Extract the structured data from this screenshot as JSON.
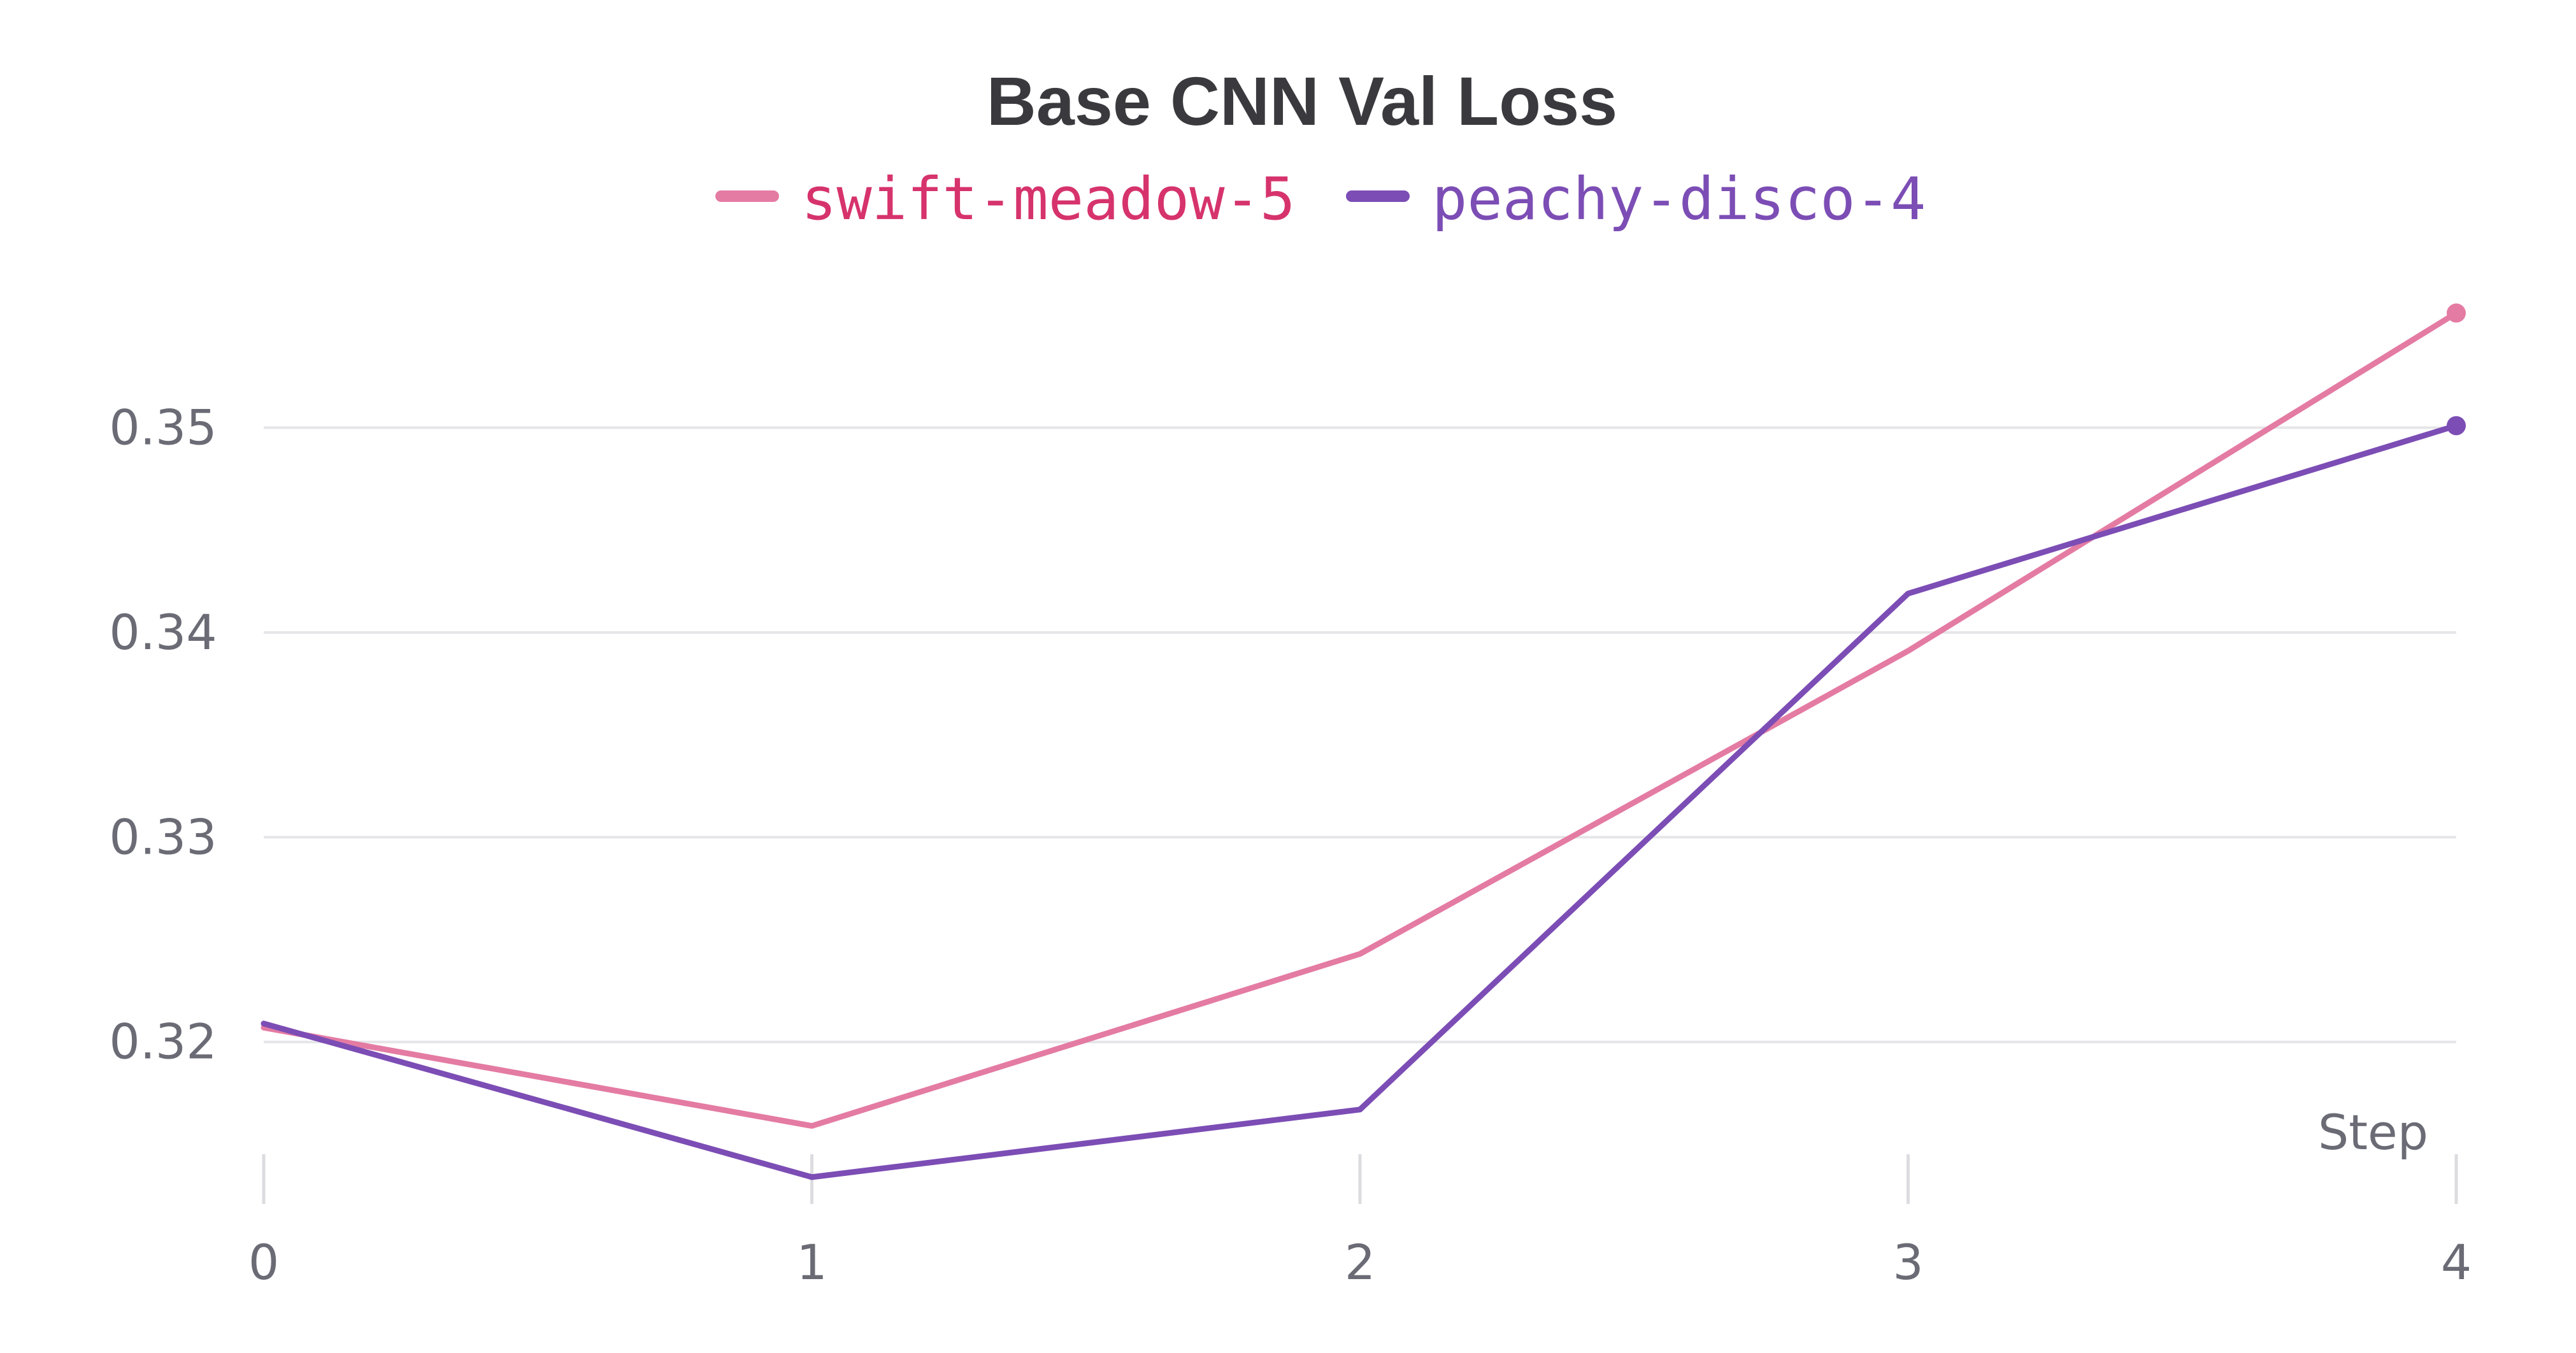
{
  "chart_data": {
    "type": "line",
    "title": "Base CNN Val Loss",
    "xlabel": "Step",
    "ylabel": "",
    "x": [
      0,
      1,
      2,
      3,
      4
    ],
    "xlim": [
      0,
      4
    ],
    "ylim": [
      0.3124,
      0.36
    ],
    "yticks": [
      0.32,
      0.33,
      0.34,
      0.35
    ],
    "ytick_labels": [
      "0.32",
      "0.33",
      "0.34",
      "0.35"
    ],
    "xticks": [
      0,
      1,
      2,
      3,
      4
    ],
    "xtick_labels": [
      "0",
      "1",
      "2",
      "3",
      "4"
    ],
    "grid": "horizontal",
    "legend_position": "top",
    "series": [
      {
        "name": "swift-meadow-5",
        "color": "#e47ba3",
        "label_color": "#d6336c",
        "values": [
          0.3207,
          0.3159,
          0.3243,
          0.3391,
          0.3556
        ]
      },
      {
        "name": "peachy-disco-4",
        "color": "#7c4db5",
        "label_color": "#7c4db5",
        "values": [
          0.3209,
          0.3134,
          0.3167,
          0.3419,
          0.3501
        ]
      }
    ]
  }
}
